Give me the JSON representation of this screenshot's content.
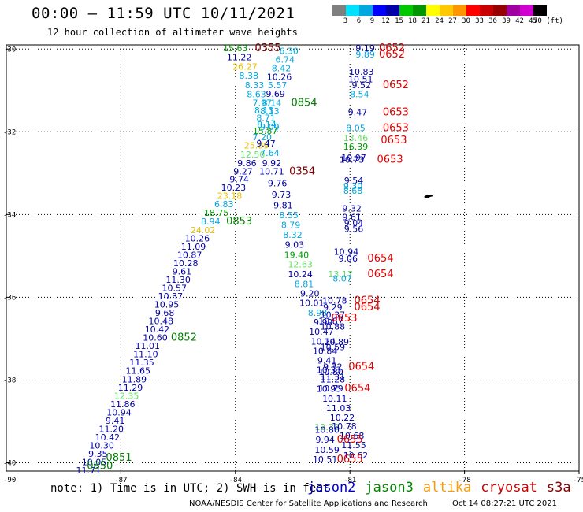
{
  "title": "00:00 – 11:59 UTC 10/11/2021",
  "subtitle": "12 hour collection of altimeter wave heights",
  "legend": {
    "labels": [
      "3",
      "6",
      "9",
      "12",
      "15",
      "18",
      "21",
      "24",
      "27",
      "30",
      "33",
      "36",
      "39",
      "42",
      "45",
      "70 (ft)"
    ],
    "colors": [
      "#7f7f7f",
      "#00e0ff",
      "#00a8e0",
      "#0000ff",
      "#0000a8",
      "#00c800",
      "#009600",
      "#ffff00",
      "#ffc800",
      "#ff9600",
      "#ff0000",
      "#c80000",
      "#960000",
      "#a000a0",
      "#d000d0",
      "#000000"
    ]
  },
  "axes": {
    "lon_ticks": [
      {
        "lon": -87,
        "label": "-87"
      },
      {
        "lon": -84,
        "label": "-84"
      },
      {
        "lon": -81,
        "label": "-81"
      },
      {
        "lon": -78,
        "label": "-78"
      },
      {
        "lon": -75,
        "label": "-75"
      }
    ],
    "lat_ticks": [
      {
        "lat": -30,
        "label": "-30"
      },
      {
        "lat": -32,
        "label": "-32"
      },
      {
        "lat": -34,
        "label": "-34"
      },
      {
        "lat": -36,
        "label": "-36"
      },
      {
        "lat": -38,
        "label": "-38"
      },
      {
        "lat": -40,
        "label": "-40"
      }
    ],
    "corner_left": "-90"
  },
  "note": "note: 1) Time is in UTC; 2) SWH is in feet",
  "satellites": [
    {
      "name": "jason2",
      "color": "#0000cc"
    },
    {
      "name": "jason3",
      "color": "#008800"
    },
    {
      "name": "altika",
      "color": "#ff9900"
    },
    {
      "name": "cryosat",
      "color": "#cc0000"
    },
    {
      "name": "s3a",
      "color": "#880000"
    }
  ],
  "footer": {
    "credit": "NOAA/NESDIS Center for Satellite Applications and Research",
    "timestamp": "Oct 14 08:27:21 UTC 2021"
  },
  "chart_data": {
    "type": "scatter",
    "xlim": [
      -90,
      -75
    ],
    "ylim": [
      -40.2,
      -29.9
    ],
    "grid": true,
    "wave_heights": [
      {
        "lon": -84.0,
        "lat": -30.05,
        "v": "15.63",
        "c": "#00a000"
      },
      {
        "lon": -83.9,
        "lat": -30.27,
        "v": "11.22",
        "c": "#0000a8"
      },
      {
        "lon": -83.75,
        "lat": -30.5,
        "v": "26.27",
        "c": "#e8c000"
      },
      {
        "lon": -83.65,
        "lat": -30.72,
        "v": "8.38",
        "c": "#00a8e0"
      },
      {
        "lon": -83.5,
        "lat": -30.95,
        "v": "8.33",
        "c": "#00a8e0"
      },
      {
        "lon": -83.45,
        "lat": -31.17,
        "v": "8.63",
        "c": "#00a8e0"
      },
      {
        "lon": -83.3,
        "lat": -31.38,
        "v": "7.97",
        "c": "#00a8e0"
      },
      {
        "lon": -83.25,
        "lat": -31.56,
        "v": "8.13",
        "c": "#00a8e0"
      },
      {
        "lon": -83.2,
        "lat": -31.74,
        "v": "8.71",
        "c": "#00a8e0"
      },
      {
        "lon": -83.18,
        "lat": -31.9,
        "v": "8.14",
        "c": "#00a8e0"
      },
      {
        "lon": -83.22,
        "lat": -32.05,
        "v": "15.87",
        "c": "#00a000"
      },
      {
        "lon": -83.3,
        "lat": -32.2,
        "v": "7.20",
        "c": "#00a8e0"
      },
      {
        "lon": -83.45,
        "lat": -32.4,
        "v": "25.89",
        "c": "#e8c000"
      },
      {
        "lon": -83.55,
        "lat": -32.62,
        "v": "12.50",
        "c": "#66dd66"
      },
      {
        "lon": -83.7,
        "lat": -32.83,
        "v": "9.86",
        "c": "#0000a8"
      },
      {
        "lon": -83.8,
        "lat": -33.03,
        "v": "9.27",
        "c": "#0000a8"
      },
      {
        "lon": -83.9,
        "lat": -33.22,
        "v": "9.74",
        "c": "#0000a8"
      },
      {
        "lon": -84.05,
        "lat": -33.42,
        "v": "10.23",
        "c": "#0000a8"
      },
      {
        "lon": -84.15,
        "lat": -33.62,
        "v": "23.18",
        "c": "#e8c000"
      },
      {
        "lon": -84.3,
        "lat": -33.82,
        "v": "6.83",
        "c": "#00a8e0"
      },
      {
        "lon": -84.5,
        "lat": -34.03,
        "v": "18.75",
        "c": "#00a000"
      },
      {
        "lon": -84.65,
        "lat": -34.24,
        "v": "8.94",
        "c": "#00a8e0"
      },
      {
        "lon": -84.85,
        "lat": -34.45,
        "v": "24.02",
        "c": "#e8c000"
      },
      {
        "lon": -85.0,
        "lat": -34.65,
        "v": "10.26",
        "c": "#0000a8"
      },
      {
        "lon": -85.1,
        "lat": -34.85,
        "v": "11.09",
        "c": "#0000a8"
      },
      {
        "lon": -85.2,
        "lat": -35.05,
        "v": "10.87",
        "c": "#0000a8"
      },
      {
        "lon": -85.3,
        "lat": -35.25,
        "v": "10.28",
        "c": "#0000a8"
      },
      {
        "lon": -85.4,
        "lat": -35.45,
        "v": "9.61",
        "c": "#0000a8"
      },
      {
        "lon": -85.5,
        "lat": -35.65,
        "v": "11.30",
        "c": "#0000a8"
      },
      {
        "lon": -85.6,
        "lat": -35.85,
        "v": "10.57",
        "c": "#0000a8"
      },
      {
        "lon": -85.7,
        "lat": -36.05,
        "v": "10.37",
        "c": "#0000a8"
      },
      {
        "lon": -85.8,
        "lat": -36.25,
        "v": "10.95",
        "c": "#0000a8"
      },
      {
        "lon": -85.85,
        "lat": -36.45,
        "v": "9.68",
        "c": "#0000a8"
      },
      {
        "lon": -85.95,
        "lat": -36.65,
        "v": "10.48",
        "c": "#0000a8"
      },
      {
        "lon": -86.05,
        "lat": -36.85,
        "v": "10.42",
        "c": "#0000a8"
      },
      {
        "lon": -86.1,
        "lat": -37.05,
        "v": "10.60",
        "c": "#0000a8"
      },
      {
        "lon": -86.3,
        "lat": -37.25,
        "v": "11.01",
        "c": "#0000a8"
      },
      {
        "lon": -86.35,
        "lat": -37.45,
        "v": "11.10",
        "c": "#0000a8"
      },
      {
        "lon": -86.45,
        "lat": -37.65,
        "v": "11.35",
        "c": "#0000a8"
      },
      {
        "lon": -86.55,
        "lat": -37.85,
        "v": "11.65",
        "c": "#0000a8"
      },
      {
        "lon": -86.65,
        "lat": -38.06,
        "v": "11.89",
        "c": "#0000a8"
      },
      {
        "lon": -86.75,
        "lat": -38.26,
        "v": "11.29",
        "c": "#0000a8"
      },
      {
        "lon": -86.85,
        "lat": -38.46,
        "v": "12.35",
        "c": "#66dd66"
      },
      {
        "lon": -86.95,
        "lat": -38.66,
        "v": "11.86",
        "c": "#0000a8"
      },
      {
        "lon": -87.05,
        "lat": -38.86,
        "v": "10.94",
        "c": "#0000a8"
      },
      {
        "lon": -87.15,
        "lat": -39.06,
        "v": "9.41",
        "c": "#0000a8"
      },
      {
        "lon": -87.25,
        "lat": -39.26,
        "v": "11.20",
        "c": "#0000a8"
      },
      {
        "lon": -87.35,
        "lat": -39.46,
        "v": "10.42",
        "c": "#0000a8"
      },
      {
        "lon": -87.5,
        "lat": -39.66,
        "v": "10.30",
        "c": "#0000a8"
      },
      {
        "lon": -87.6,
        "lat": -39.86,
        "v": "9.35",
        "c": "#0000a8"
      },
      {
        "lon": -87.7,
        "lat": -40.06,
        "v": "10.05",
        "c": "#0000a8"
      },
      {
        "lon": -87.85,
        "lat": -40.26,
        "v": "11.71",
        "c": "#0000a8"
      },
      {
        "lon": -82.6,
        "lat": -30.12,
        "v": "6.30",
        "c": "#00a8e0"
      },
      {
        "lon": -82.7,
        "lat": -30.33,
        "v": "6.74",
        "c": "#00a8e0"
      },
      {
        "lon": -82.8,
        "lat": -30.54,
        "v": "8.42",
        "c": "#00a8e0"
      },
      {
        "lon": -82.85,
        "lat": -30.75,
        "v": "10.26",
        "c": "#0000a8"
      },
      {
        "lon": -82.9,
        "lat": -30.95,
        "v": "5.57",
        "c": "#00a8e0"
      },
      {
        "lon": -82.95,
        "lat": -31.16,
        "v": "9.69",
        "c": "#0000a8"
      },
      {
        "lon": -83.05,
        "lat": -31.38,
        "v": "8.14",
        "c": "#00a8e0"
      },
      {
        "lon": -83.1,
        "lat": -31.58,
        "v": "8.13",
        "c": "#00a8e0"
      },
      {
        "lon": -83.1,
        "lat": -31.96,
        "v": "9.09",
        "c": "#00a8e0"
      },
      {
        "lon": -83.2,
        "lat": -32.36,
        "v": "9.47",
        "c": "#0000a8"
      },
      {
        "lon": -83.1,
        "lat": -32.58,
        "v": "7.64",
        "c": "#00a8e0"
      },
      {
        "lon": -83.05,
        "lat": -32.83,
        "v": "9.92",
        "c": "#0000a8"
      },
      {
        "lon": -83.05,
        "lat": -33.03,
        "v": "10.71",
        "c": "#0000a8"
      },
      {
        "lon": -82.9,
        "lat": -33.32,
        "v": "9.76",
        "c": "#0000a8"
      },
      {
        "lon": -82.8,
        "lat": -33.59,
        "v": "9.73",
        "c": "#0000a8"
      },
      {
        "lon": -82.75,
        "lat": -33.85,
        "v": "9.81",
        "c": "#0000a8"
      },
      {
        "lon": -82.6,
        "lat": -34.09,
        "v": "8.55",
        "c": "#00a8e0"
      },
      {
        "lon": -82.55,
        "lat": -34.33,
        "v": "8.79",
        "c": "#00a8e0"
      },
      {
        "lon": -82.5,
        "lat": -34.56,
        "v": "8.32",
        "c": "#00a8e0"
      },
      {
        "lon": -82.45,
        "lat": -34.8,
        "v": "9.03",
        "c": "#0000a8"
      },
      {
        "lon": -82.4,
        "lat": -35.05,
        "v": "19.40",
        "c": "#00a000"
      },
      {
        "lon": -82.3,
        "lat": -35.28,
        "v": "12.63",
        "c": "#66dd66"
      },
      {
        "lon": -82.3,
        "lat": -35.52,
        "v": "10.24",
        "c": "#0000a8"
      },
      {
        "lon": -82.2,
        "lat": -35.75,
        "v": "8.81",
        "c": "#00a8e0"
      },
      {
        "lon": -82.05,
        "lat": -35.98,
        "v": "9.20",
        "c": "#0000a8"
      },
      {
        "lon": -82.0,
        "lat": -36.21,
        "v": "10.01",
        "c": "#0000a8"
      },
      {
        "lon": -81.85,
        "lat": -36.45,
        "v": "8.98",
        "c": "#00a8e0"
      },
      {
        "lon": -81.7,
        "lat": -36.68,
        "v": "9.99",
        "c": "#0000a8"
      },
      {
        "lon": -81.75,
        "lat": -36.91,
        "v": "10.47",
        "c": "#0000a8"
      },
      {
        "lon": -81.7,
        "lat": -37.14,
        "v": "10.24",
        "c": "#0000a8"
      },
      {
        "lon": -81.65,
        "lat": -37.37,
        "v": "10.84",
        "c": "#0000a8"
      },
      {
        "lon": -81.6,
        "lat": -37.6,
        "v": "9.41",
        "c": "#0000a8"
      },
      {
        "lon": -81.55,
        "lat": -37.83,
        "v": "10.33",
        "c": "#0000a8"
      },
      {
        "lon": -81.45,
        "lat": -38.06,
        "v": "11.28",
        "c": "#0000a8"
      },
      {
        "lon": -81.55,
        "lat": -38.29,
        "v": "10.95",
        "c": "#0000a8"
      },
      {
        "lon": -81.4,
        "lat": -38.52,
        "v": "10.11",
        "c": "#0000a8"
      },
      {
        "lon": -81.3,
        "lat": -38.75,
        "v": "11.03",
        "c": "#0000a8"
      },
      {
        "lon": -81.2,
        "lat": -38.98,
        "v": "10.22",
        "c": "#0000a8"
      },
      {
        "lon": -81.6,
        "lat": -39.21,
        "v": "12.32",
        "c": "#66dd66"
      },
      {
        "lon": -81.6,
        "lat": -39.28,
        "v": "10.80",
        "c": "#0000a8"
      },
      {
        "lon": -81.65,
        "lat": -39.51,
        "v": "9.94",
        "c": "#0000a8"
      },
      {
        "lon": -81.15,
        "lat": -39.19,
        "v": "10.78",
        "c": "#0000a8"
      },
      {
        "lon": -80.95,
        "lat": -39.42,
        "v": "10.68",
        "c": "#0000a8"
      },
      {
        "lon": -80.9,
        "lat": -39.65,
        "v": "11.55",
        "c": "#0000a8"
      },
      {
        "lon": -81.6,
        "lat": -39.76,
        "v": "10.59",
        "c": "#0000a8"
      },
      {
        "lon": -81.65,
        "lat": -39.99,
        "v": "10.51",
        "c": "#0000a8"
      },
      {
        "lon": -80.85,
        "lat": -39.9,
        "v": "10.62",
        "c": "#0000a8"
      },
      {
        "lon": -80.6,
        "lat": -30.05,
        "v": "9.19",
        "c": "#0000a8"
      },
      {
        "lon": -80.6,
        "lat": -30.2,
        "v": "9.89",
        "c": "#00a8e0"
      },
      {
        "lon": -80.7,
        "lat": -30.62,
        "v": "10.83",
        "c": "#0000a8"
      },
      {
        "lon": -80.72,
        "lat": -30.8,
        "v": "10.51",
        "c": "#0000a8"
      },
      {
        "lon": -80.7,
        "lat": -30.95,
        "v": "9.52",
        "c": "#0000a8"
      },
      {
        "lon": -80.75,
        "lat": -31.17,
        "v": "8.54",
        "c": "#00a8e0"
      },
      {
        "lon": -80.8,
        "lat": -31.6,
        "v": "9.47",
        "c": "#0000a8"
      },
      {
        "lon": -80.85,
        "lat": -31.98,
        "v": "8.05",
        "c": "#00a8e0"
      },
      {
        "lon": -80.85,
        "lat": -32.22,
        "v": "13.46",
        "c": "#66dd66"
      },
      {
        "lon": -80.85,
        "lat": -32.43,
        "v": "16.39",
        "c": "#00a000"
      },
      {
        "lon": -80.9,
        "lat": -32.7,
        "v": "10.97",
        "c": "#0000a8"
      },
      {
        "lon": -80.95,
        "lat": -32.75,
        "v": "10.73",
        "c": "#0000a8"
      },
      {
        "lon": -80.9,
        "lat": -33.25,
        "v": "9.54",
        "c": "#0000a8"
      },
      {
        "lon": -80.92,
        "lat": -33.38,
        "v": "9.30",
        "c": "#00a8e0"
      },
      {
        "lon": -80.92,
        "lat": -33.5,
        "v": "8.68",
        "c": "#00a8e0"
      },
      {
        "lon": -80.95,
        "lat": -33.93,
        "v": "9.32",
        "c": "#0000a8"
      },
      {
        "lon": -80.95,
        "lat": -34.14,
        "v": "9.61",
        "c": "#0000a8"
      },
      {
        "lon": -80.9,
        "lat": -34.28,
        "v": "9.04",
        "c": "#0000a8"
      },
      {
        "lon": -80.9,
        "lat": -34.42,
        "v": "9.56",
        "c": "#0000a8"
      },
      {
        "lon": -81.1,
        "lat": -34.97,
        "v": "10.94",
        "c": "#0000a8"
      },
      {
        "lon": -81.05,
        "lat": -35.14,
        "v": "9.06",
        "c": "#0000a8"
      },
      {
        "lon": -81.25,
        "lat": -35.52,
        "v": "13.17",
        "c": "#66dd66"
      },
      {
        "lon": -81.2,
        "lat": -35.62,
        "v": "8.07",
        "c": "#00a8e0"
      },
      {
        "lon": -81.4,
        "lat": -36.15,
        "v": "10.78",
        "c": "#0000a8"
      },
      {
        "lon": -81.45,
        "lat": -36.32,
        "v": "9.29",
        "c": "#0000a8"
      },
      {
        "lon": -81.45,
        "lat": -36.5,
        "v": "10.37",
        "c": "#0000a8"
      },
      {
        "lon": -81.5,
        "lat": -36.65,
        "v": "10.87",
        "c": "#0000a8"
      },
      {
        "lon": -81.45,
        "lat": -36.78,
        "v": "10.88",
        "c": "#0000a8"
      },
      {
        "lon": -81.35,
        "lat": -37.15,
        "v": "10.89",
        "c": "#0000a8"
      },
      {
        "lon": -81.45,
        "lat": -37.28,
        "v": "10.59",
        "c": "#0000a8"
      },
      {
        "lon": -81.45,
        "lat": -37.75,
        "v": "9.32",
        "c": "#0000a8"
      },
      {
        "lon": -81.5,
        "lat": -37.88,
        "v": "10.80",
        "c": "#0000a8"
      },
      {
        "lon": -81.45,
        "lat": -38.0,
        "v": "11.31",
        "c": "#0000a8"
      },
      {
        "lon": -81.5,
        "lat": -38.28,
        "v": "10.79",
        "c": "#0000a8"
      }
    ],
    "pass_times": [
      {
        "lon": -83.15,
        "lat": -30.05,
        "v": "0355",
        "c": "#800000"
      },
      {
        "lon": -82.2,
        "lat": -31.38,
        "v": "0854",
        "c": "#008000"
      },
      {
        "lon": -82.25,
        "lat": -33.03,
        "v": "0354",
        "c": "#800000"
      },
      {
        "lon": -83.9,
        "lat": -34.24,
        "v": "0853",
        "c": "#008000"
      },
      {
        "lon": -85.35,
        "lat": -37.05,
        "v": "0852",
        "c": "#008000"
      },
      {
        "lon": -87.05,
        "lat": -39.95,
        "v": "0851",
        "c": "#008000"
      },
      {
        "lon": -87.55,
        "lat": -40.15,
        "v": "0850",
        "c": "#008000"
      },
      {
        "lon": -79.9,
        "lat": -30.05,
        "v": "0652",
        "c": "#e00000"
      },
      {
        "lon": -79.9,
        "lat": -30.2,
        "v": "0652",
        "c": "#e00000"
      },
      {
        "lon": -79.8,
        "lat": -30.95,
        "v": "0652",
        "c": "#e00000"
      },
      {
        "lon": -79.8,
        "lat": -31.6,
        "v": "0653",
        "c": "#e00000"
      },
      {
        "lon": -79.8,
        "lat": -31.98,
        "v": "0653",
        "c": "#e00000"
      },
      {
        "lon": -79.85,
        "lat": -32.28,
        "v": "0653",
        "c": "#e00000"
      },
      {
        "lon": -79.95,
        "lat": -32.75,
        "v": "0653",
        "c": "#e00000"
      },
      {
        "lon": -80.2,
        "lat": -35.14,
        "v": "0654",
        "c": "#e00000"
      },
      {
        "lon": -80.2,
        "lat": -35.52,
        "v": "0654",
        "c": "#e00000"
      },
      {
        "lon": -80.55,
        "lat": -36.15,
        "v": "0654",
        "c": "#e00000"
      },
      {
        "lon": -80.55,
        "lat": -36.32,
        "v": "0654",
        "c": "#e00000"
      },
      {
        "lon": -81.15,
        "lat": -36.58,
        "v": "0653",
        "c": "#e00000"
      },
      {
        "lon": -80.7,
        "lat": -37.75,
        "v": "0654",
        "c": "#e00000"
      },
      {
        "lon": -80.8,
        "lat": -38.28,
        "v": "0654",
        "c": "#e00000"
      },
      {
        "lon": -81.0,
        "lat": -39.51,
        "v": "0655",
        "c": "#e00000"
      },
      {
        "lon": -81.0,
        "lat": -39.99,
        "v": "0655",
        "c": "#e00000"
      }
    ]
  }
}
